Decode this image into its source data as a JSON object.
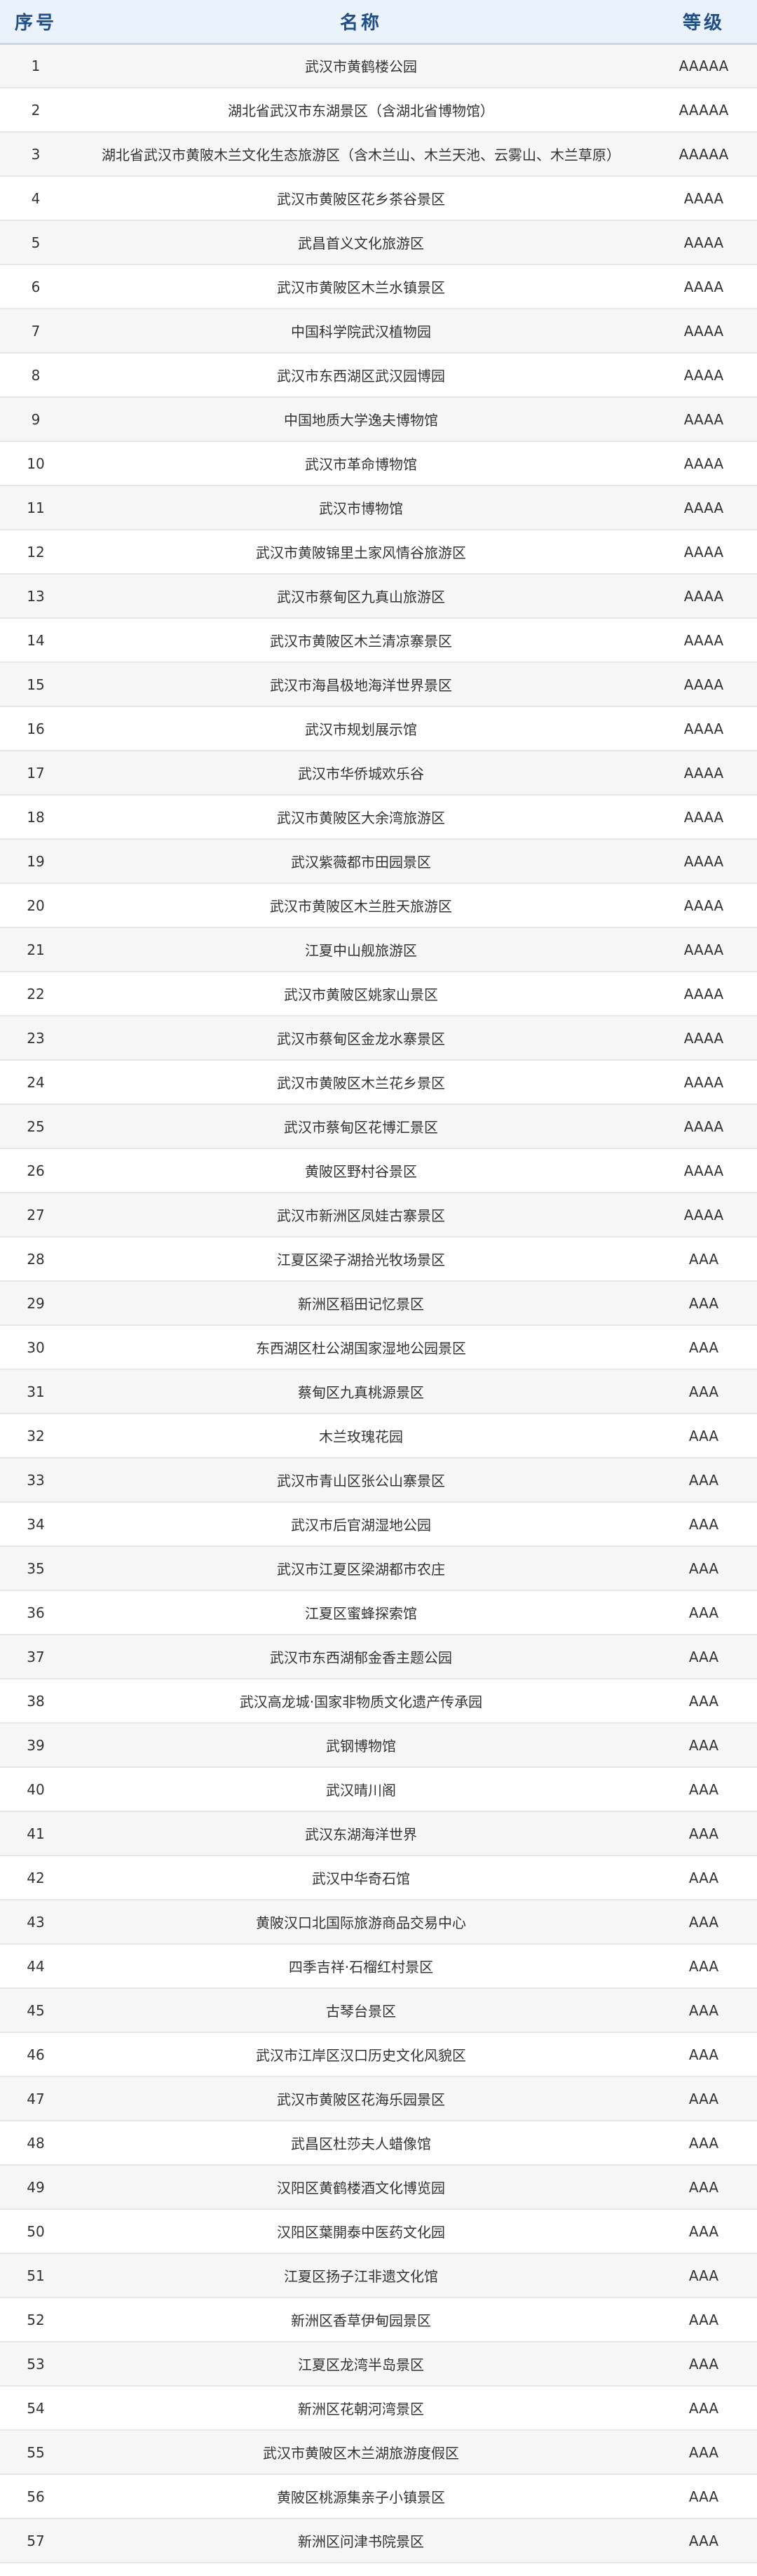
{
  "header": {
    "index": "序号",
    "name": "名称",
    "level": "等级"
  },
  "colors": {
    "header_bg": "#eaf2fb",
    "header_text": "#1f4e8c",
    "row_alt": "#f6f6f6"
  },
  "rows": [
    {
      "no": "1",
      "name": "武汉市黄鹤楼公园",
      "level": "AAAAA"
    },
    {
      "no": "2",
      "name": "湖北省武汉市东湖景区（含湖北省博物馆）",
      "level": "AAAAA"
    },
    {
      "no": "3",
      "name": "湖北省武汉市黄陂木兰文化生态旅游区（含木兰山、木兰天池、云雾山、木兰草原）",
      "level": "AAAAA"
    },
    {
      "no": "4",
      "name": "武汉市黄陂区花乡茶谷景区",
      "level": "AAAA"
    },
    {
      "no": "5",
      "name": "武昌首义文化旅游区",
      "level": "AAAA"
    },
    {
      "no": "6",
      "name": "武汉市黄陂区木兰水镇景区",
      "level": "AAAA"
    },
    {
      "no": "7",
      "name": "中国科学院武汉植物园",
      "level": "AAAA"
    },
    {
      "no": "8",
      "name": "武汉市东西湖区武汉园博园",
      "level": "AAAA"
    },
    {
      "no": "9",
      "name": "中国地质大学逸夫博物馆",
      "level": "AAAA"
    },
    {
      "no": "10",
      "name": "武汉市革命博物馆",
      "level": "AAAA"
    },
    {
      "no": "11",
      "name": "武汉市博物馆",
      "level": "AAAA"
    },
    {
      "no": "12",
      "name": "武汉市黄陂锦里土家风情谷旅游区",
      "level": "AAAA"
    },
    {
      "no": "13",
      "name": "武汉市蔡甸区九真山旅游区",
      "level": "AAAA"
    },
    {
      "no": "14",
      "name": "武汉市黄陂区木兰清凉寨景区",
      "level": "AAAA"
    },
    {
      "no": "15",
      "name": "武汉市海昌极地海洋世界景区",
      "level": "AAAA"
    },
    {
      "no": "16",
      "name": "武汉市规划展示馆",
      "level": "AAAA"
    },
    {
      "no": "17",
      "name": "武汉市华侨城欢乐谷",
      "level": "AAAA"
    },
    {
      "no": "18",
      "name": "武汉市黄陂区大余湾旅游区",
      "level": "AAAA"
    },
    {
      "no": "19",
      "name": "武汉紫薇都市田园景区",
      "level": "AAAA"
    },
    {
      "no": "20",
      "name": "武汉市黄陂区木兰胜天旅游区",
      "level": "AAAA"
    },
    {
      "no": "21",
      "name": "江夏中山舰旅游区",
      "level": "AAAA"
    },
    {
      "no": "22",
      "name": "武汉市黄陂区姚家山景区",
      "level": "AAAA"
    },
    {
      "no": "23",
      "name": "武汉市蔡甸区金龙水寨景区",
      "level": "AAAA"
    },
    {
      "no": "24",
      "name": "武汉市黄陂区木兰花乡景区",
      "level": "AAAA"
    },
    {
      "no": "25",
      "name": "武汉市蔡甸区花博汇景区",
      "level": "AAAA"
    },
    {
      "no": "26",
      "name": "黄陂区野村谷景区",
      "level": "AAAA"
    },
    {
      "no": "27",
      "name": "武汉市新洲区凤娃古寨景区",
      "level": "AAAA"
    },
    {
      "no": "28",
      "name": "江夏区梁子湖拾光牧场景区",
      "level": "AAA"
    },
    {
      "no": "29",
      "name": "新洲区稻田记忆景区",
      "level": "AAA"
    },
    {
      "no": "30",
      "name": "东西湖区杜公湖国家湿地公园景区",
      "level": "AAA"
    },
    {
      "no": "31",
      "name": "蔡甸区九真桃源景区",
      "level": "AAA"
    },
    {
      "no": "32",
      "name": "木兰玫瑰花园",
      "level": "AAA"
    },
    {
      "no": "33",
      "name": "武汉市青山区张公山寨景区",
      "level": "AAA"
    },
    {
      "no": "34",
      "name": "武汉市后官湖湿地公园",
      "level": "AAA"
    },
    {
      "no": "35",
      "name": "武汉市江夏区梁湖都市农庄",
      "level": "AAA"
    },
    {
      "no": "36",
      "name": "江夏区蜜蜂探索馆",
      "level": "AAA"
    },
    {
      "no": "37",
      "name": "武汉市东西湖郁金香主题公园",
      "level": "AAA"
    },
    {
      "no": "38",
      "name": "武汉高龙城·国家非物质文化遗产传承园",
      "level": "AAA"
    },
    {
      "no": "39",
      "name": "武钢博物馆",
      "level": "AAA"
    },
    {
      "no": "40",
      "name": "武汉晴川阁",
      "level": "AAA"
    },
    {
      "no": "41",
      "name": "武汉东湖海洋世界",
      "level": "AAA"
    },
    {
      "no": "42",
      "name": "武汉中华奇石馆",
      "level": "AAA"
    },
    {
      "no": "43",
      "name": "黄陂汉口北国际旅游商品交易中心",
      "level": "AAA"
    },
    {
      "no": "44",
      "name": "四季吉祥·石榴红村景区",
      "level": "AAA"
    },
    {
      "no": "45",
      "name": "古琴台景区",
      "level": "AAA"
    },
    {
      "no": "46",
      "name": "武汉市江岸区汉口历史文化风貌区",
      "level": "AAA"
    },
    {
      "no": "47",
      "name": "武汉市黄陂区花海乐园景区",
      "level": "AAA"
    },
    {
      "no": "48",
      "name": "武昌区杜莎夫人蜡像馆",
      "level": "AAA"
    },
    {
      "no": "49",
      "name": "汉阳区黄鹤楼酒文化博览园",
      "level": "AAA"
    },
    {
      "no": "50",
      "name": "汉阳区葉開泰中医药文化园",
      "level": "AAA"
    },
    {
      "no": "51",
      "name": "江夏区扬子江非遗文化馆",
      "level": "AAA"
    },
    {
      "no": "52",
      "name": "新洲区香草伊甸园景区",
      "level": "AAA"
    },
    {
      "no": "53",
      "name": "江夏区龙湾半岛景区",
      "level": "AAA"
    },
    {
      "no": "54",
      "name": "新洲区花朝河湾景区",
      "level": "AAA"
    },
    {
      "no": "55",
      "name": "武汉市黄陂区木兰湖旅游度假区",
      "level": "AAA"
    },
    {
      "no": "56",
      "name": "黄陂区桃源集亲子小镇景区",
      "level": "AAA"
    },
    {
      "no": "57",
      "name": "新洲区问津书院景区",
      "level": "AAA"
    }
  ]
}
